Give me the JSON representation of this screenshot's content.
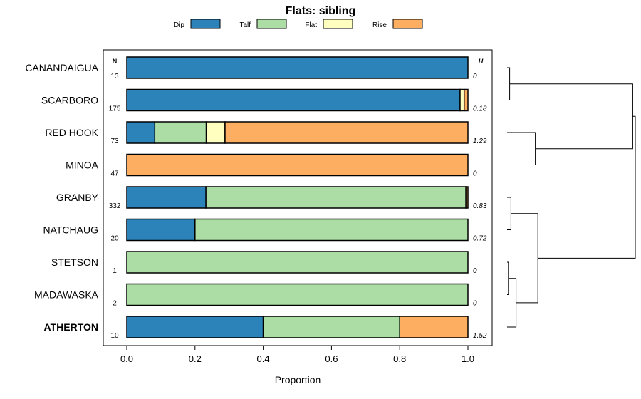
{
  "chart_data": {
    "type": "bar",
    "subtype": "stacked-horizontal-proportion",
    "title": "Flats: sibling",
    "xlabel": "Proportion",
    "ylabel": "",
    "xlim": [
      0,
      1
    ],
    "x_ticks": [
      "0.0",
      "0.2",
      "0.4",
      "0.6",
      "0.8",
      "1.0"
    ],
    "n_header": "N",
    "h_header": "H",
    "legend": [
      {
        "name": "Dip",
        "color": "#2B83BA"
      },
      {
        "name": "Talf",
        "color": "#ABDDA4"
      },
      {
        "name": "Flat",
        "color": "#FFFFBF"
      },
      {
        "name": "Rise",
        "color": "#FDAE61"
      }
    ],
    "categories": [
      "CANANDAIGUA",
      "SCARBORO",
      "RED HOOK",
      "MINOA",
      "GRANBY",
      "NATCHAUG",
      "STETSON",
      "MADAWASKA",
      "ATHERTON"
    ],
    "bold_categories": [
      "ATHERTON"
    ],
    "n_values": [
      "13",
      "175",
      "73",
      "47",
      "332",
      "20",
      "1",
      "2",
      "10"
    ],
    "h_values": [
      "0",
      "0.18",
      "1.29",
      "0",
      "0.83",
      "0.72",
      "0",
      "0",
      "1.52"
    ],
    "series": [
      {
        "name": "Dip",
        "values": [
          1.0,
          0.977,
          0.082,
          0.0,
          0.232,
          0.2,
          0.0,
          0.0,
          0.4
        ]
      },
      {
        "name": "Talf",
        "values": [
          0.0,
          0.0,
          0.151,
          0.0,
          0.762,
          0.8,
          1.0,
          1.0,
          0.4
        ]
      },
      {
        "name": "Flat",
        "values": [
          0.0,
          0.012,
          0.055,
          0.0,
          0.0,
          0.0,
          0.0,
          0.0,
          0.0
        ]
      },
      {
        "name": "Rise",
        "values": [
          0.0,
          0.011,
          0.712,
          1.0,
          0.006,
          0.0,
          0.0,
          0.0,
          0.2
        ]
      }
    ],
    "dendrogram": {
      "merges": [
        {
          "a": "CANANDAIGUA",
          "b": "SCARBORO",
          "height": 0.02
        },
        {
          "a": "RED HOOK",
          "b": "MINOA",
          "height": 0.22
        },
        {
          "a": "GRANBY",
          "b": "NATCHAUG",
          "height": 0.03
        },
        {
          "a": "STETSON",
          "b": "MADAWASKA",
          "height": 0.01
        },
        {
          "a": "cluster:STETSON+MADAWASKA",
          "b": "ATHERTON",
          "height": 0.07
        },
        {
          "a": "cluster:GRANBY+NATCHAUG",
          "b": "cluster:STETSON+MADAWASKA+ATHERTON",
          "height": 0.24
        },
        {
          "a": "cluster:CANANDAIGUA+SCARBORO",
          "b": "cluster:RED HOOK+MINOA",
          "height": 0.98
        },
        {
          "a": "cluster:CANANDAIGUA..MINOA",
          "b": "cluster:GRANBY..ATHERTON",
          "height": 1.0
        }
      ]
    }
  }
}
